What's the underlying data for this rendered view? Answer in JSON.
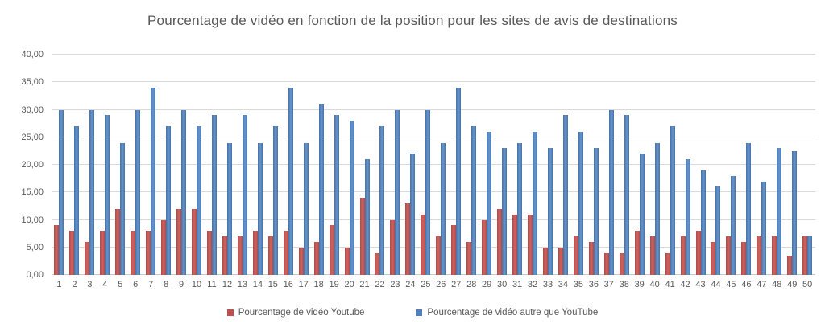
{
  "title": "Pourcentage de vidéo en fonction de la position pour les sites de avis de destinations",
  "colors": {
    "youtube_series": "#C0504D",
    "other_series": "#4F81BD",
    "gridline": "#D9D9D9",
    "text": "#595959"
  },
  "legend": {
    "youtube_label": "Pourcentage de vidéo Youtube",
    "other_label": "Pourcentage de vidéo autre que YouTube"
  },
  "chart_data": {
    "type": "bar",
    "title": "Pourcentage de vidéo en fonction de la position pour les sites de avis de destinations",
    "xlabel": "",
    "ylabel": "",
    "categories": [
      1,
      2,
      3,
      4,
      5,
      6,
      7,
      8,
      9,
      10,
      11,
      12,
      13,
      14,
      15,
      16,
      17,
      18,
      19,
      20,
      21,
      22,
      23,
      24,
      25,
      26,
      27,
      28,
      29,
      30,
      31,
      32,
      33,
      34,
      35,
      36,
      37,
      38,
      39,
      40,
      41,
      42,
      43,
      44,
      45,
      46,
      47,
      48,
      49,
      50
    ],
    "series": [
      {
        "name": "Pourcentage de vidéo Youtube",
        "color": "#C0504D",
        "values": [
          9,
          8,
          6,
          8,
          12,
          8,
          8,
          10,
          12,
          12,
          8,
          7,
          7,
          8,
          7,
          8,
          5,
          6,
          9,
          5,
          14,
          4,
          10,
          13,
          11,
          7,
          9,
          6,
          10,
          12,
          11,
          11,
          5,
          5,
          7,
          6,
          4,
          4,
          8,
          7,
          4,
          7,
          8,
          6,
          7,
          6,
          7,
          7,
          3.5,
          7
        ]
      },
      {
        "name": "Pourcentage de vidéo autre que YouTube",
        "color": "#4F81BD",
        "values": [
          30,
          27,
          30,
          29,
          24,
          30,
          34,
          27,
          30,
          27,
          29,
          24,
          29,
          24,
          27,
          34,
          24,
          31,
          29,
          28,
          21,
          27,
          30,
          22,
          30,
          24,
          34,
          27,
          26,
          23,
          24,
          26,
          23,
          29,
          26,
          23,
          30,
          29,
          22,
          24,
          27,
          21,
          19,
          16,
          18,
          24,
          17,
          23,
          22.5,
          7
        ]
      }
    ],
    "ylim": [
      0,
      40
    ],
    "ytick_step": 5,
    "ytick_labels": [
      "0,00",
      "5,00",
      "10,00",
      "15,00",
      "20,00",
      "25,00",
      "30,00",
      "35,00",
      "40,00"
    ],
    "grid": true,
    "legend_position": "bottom"
  }
}
